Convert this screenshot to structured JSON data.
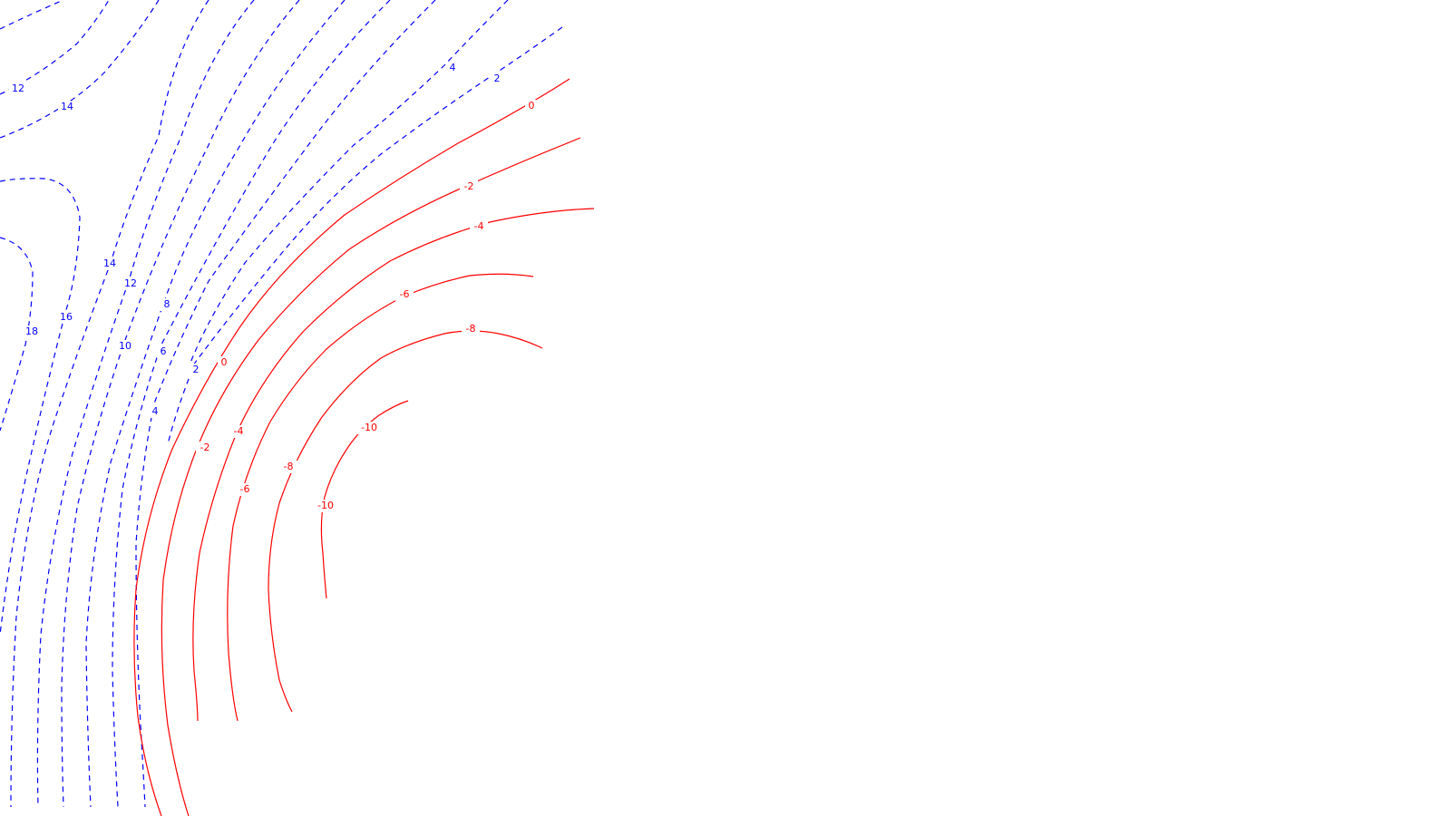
{
  "chart_data": {
    "type": "contour",
    "title": "",
    "xlabel": "",
    "ylabel": "",
    "grid": false,
    "legend": "none",
    "colors": {
      "positive": "#0000ff",
      "negative": "#ff0000"
    },
    "line_styles": {
      "positive": "dashed",
      "negative": "solid"
    },
    "levels_positive": [
      2,
      4,
      6,
      8,
      10,
      12,
      14,
      16,
      18
    ],
    "levels_negative": [
      0,
      -2,
      -4,
      -6,
      -8,
      -10
    ],
    "labels": {
      "p12a": "12",
      "p14a": "14",
      "p4a": "4",
      "p2a": "2",
      "p14b": "14",
      "p12b": "12",
      "p8": "8",
      "p16": "16",
      "p18": "18",
      "p10": "10",
      "p6": "6",
      "p2b": "2",
      "p4b": "4",
      "n0a": "0",
      "n2a": "-2",
      "n4a": "-4",
      "n6a": "-6",
      "n8a": "-8",
      "n10a": "-10",
      "n0b": "0",
      "n2b": "-2",
      "n4b": "-4",
      "n6b": "-6",
      "n8b": "-8",
      "n10b": "-10"
    }
  }
}
